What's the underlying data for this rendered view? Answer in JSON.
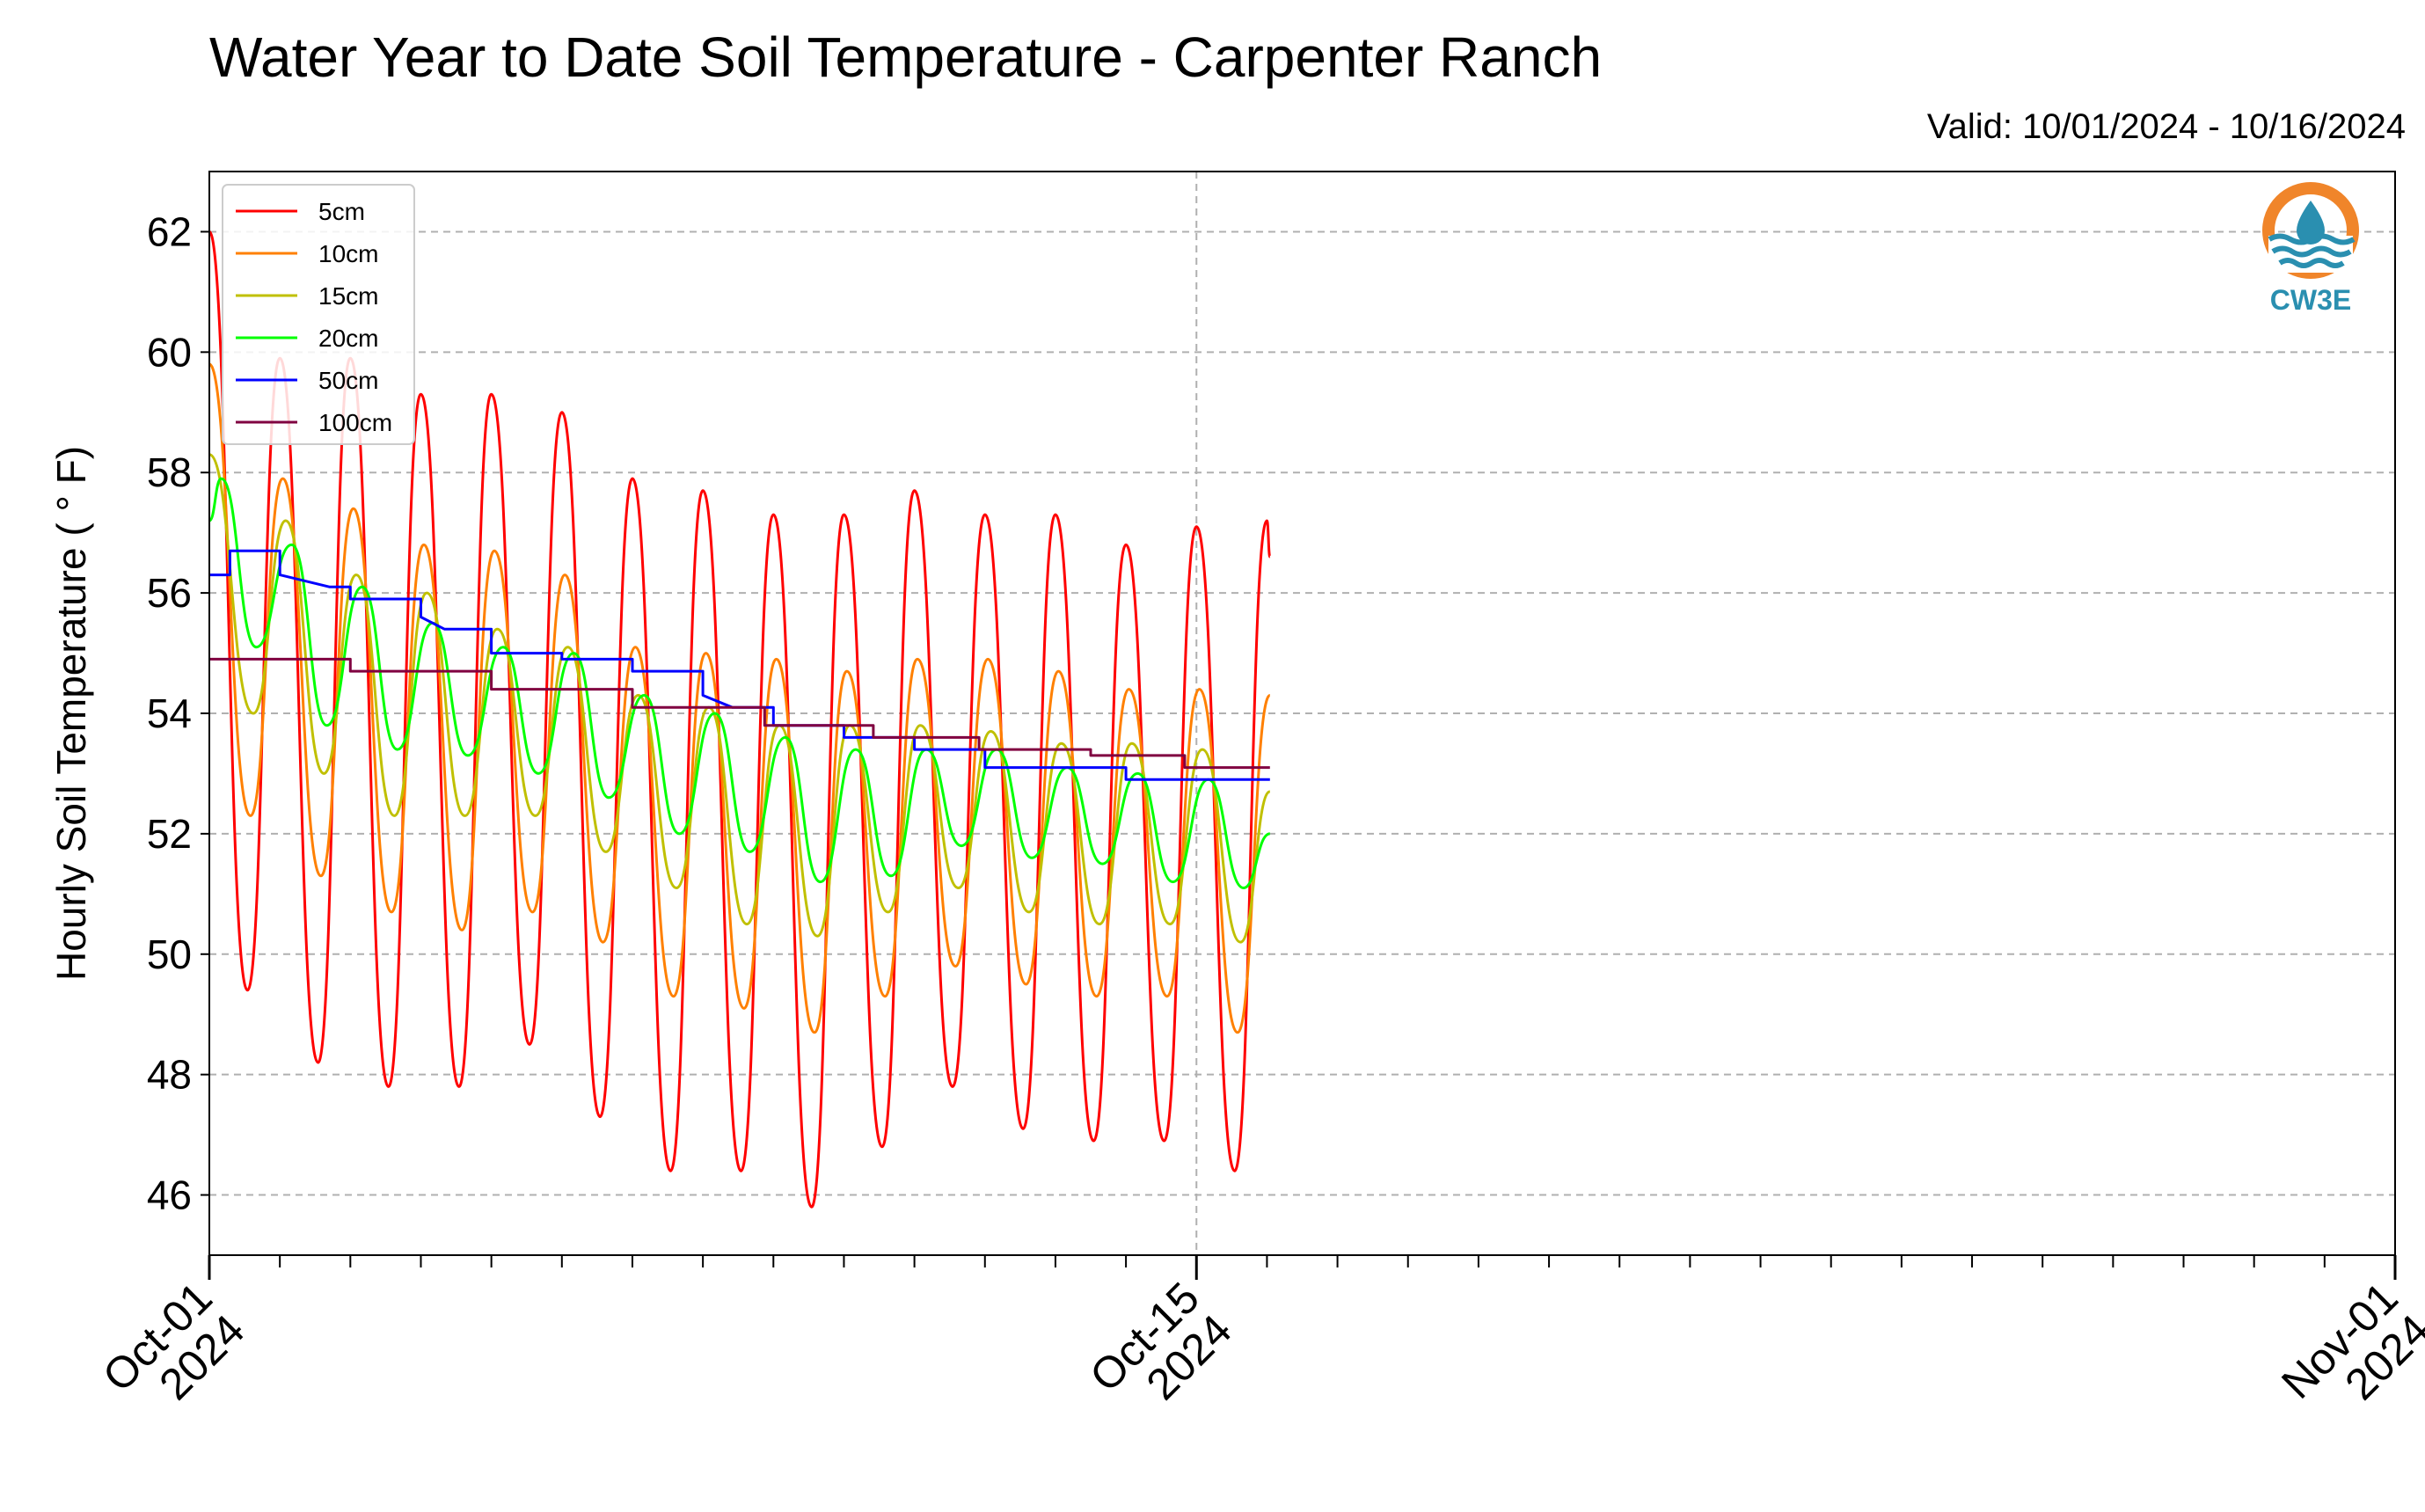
{
  "title": "Water Year to Date Soil Temperature - Carpenter Ranch",
  "valid": "Valid: 10/01/2024 - 10/16/2024",
  "logo": {
    "text": "CW3E",
    "colors": {
      "ring": "#f0852a",
      "water": "#2a8fb0"
    }
  },
  "chart_data": {
    "type": "line",
    "ylabel": "Hourly Soil Temperature ( ° F)",
    "xlabel": "",
    "ylim": [
      45,
      63
    ],
    "yticks": [
      46,
      48,
      50,
      52,
      54,
      56,
      58,
      60,
      62
    ],
    "xlim": [
      "2024-10-01",
      "2024-11-01"
    ],
    "xticks": [
      {
        "date": "2024-10-01",
        "label1": "Oct-01",
        "label2": "2024"
      },
      {
        "date": "2024-10-15",
        "label1": "Oct-15",
        "label2": "2024"
      },
      {
        "date": "2024-11-01",
        "label1": "Nov-01",
        "label2": "2024"
      }
    ],
    "vline": "2024-10-15",
    "grid": true,
    "legend": "top-left",
    "series": [
      {
        "name": "5cm",
        "color": "#ff0000",
        "points": [
          [
            "2024-10-01 00:00",
            62.0
          ],
          [
            "2024-10-01 13:00",
            49.4
          ],
          [
            "2024-10-02 00:00",
            59.9
          ],
          [
            "2024-10-02 13:00",
            48.2
          ],
          [
            "2024-10-03 00:00",
            59.9
          ],
          [
            "2024-10-03 13:00",
            47.8
          ],
          [
            "2024-10-04 00:00",
            59.3
          ],
          [
            "2024-10-04 13:00",
            47.8
          ],
          [
            "2024-10-05 00:00",
            59.3
          ],
          [
            "2024-10-05 13:00",
            48.5
          ],
          [
            "2024-10-06 00:00",
            59.0
          ],
          [
            "2024-10-06 13:00",
            47.3
          ],
          [
            "2024-10-07 00:00",
            57.9
          ],
          [
            "2024-10-07 13:00",
            46.4
          ],
          [
            "2024-10-08 00:00",
            57.7
          ],
          [
            "2024-10-08 13:00",
            46.4
          ],
          [
            "2024-10-09 00:00",
            57.3
          ],
          [
            "2024-10-09 13:00",
            45.8
          ],
          [
            "2024-10-10 00:00",
            57.3
          ],
          [
            "2024-10-10 13:00",
            46.8
          ],
          [
            "2024-10-11 00:00",
            57.7
          ],
          [
            "2024-10-11 13:00",
            47.8
          ],
          [
            "2024-10-12 00:00",
            57.3
          ],
          [
            "2024-10-12 13:00",
            47.1
          ],
          [
            "2024-10-13 00:00",
            57.3
          ],
          [
            "2024-10-13 13:00",
            46.9
          ],
          [
            "2024-10-14 00:00",
            56.8
          ],
          [
            "2024-10-14 13:00",
            46.9
          ],
          [
            "2024-10-15 00:00",
            57.1
          ],
          [
            "2024-10-15 13:00",
            46.4
          ],
          [
            "2024-10-16 00:00",
            57.2
          ],
          [
            "2024-10-16 01:00",
            56.6
          ]
        ]
      },
      {
        "name": "10cm",
        "color": "#ff8000",
        "points": [
          [
            "2024-10-01 00:00",
            59.8
          ],
          [
            "2024-10-01 14:00",
            52.3
          ],
          [
            "2024-10-02 01:00",
            57.9
          ],
          [
            "2024-10-02 14:00",
            51.3
          ],
          [
            "2024-10-03 01:00",
            57.4
          ],
          [
            "2024-10-03 14:00",
            50.7
          ],
          [
            "2024-10-04 01:00",
            56.8
          ],
          [
            "2024-10-04 14:00",
            50.4
          ],
          [
            "2024-10-05 01:00",
            56.7
          ],
          [
            "2024-10-05 14:00",
            50.7
          ],
          [
            "2024-10-06 01:00",
            56.3
          ],
          [
            "2024-10-06 14:00",
            50.2
          ],
          [
            "2024-10-07 01:00",
            55.1
          ],
          [
            "2024-10-07 14:00",
            49.3
          ],
          [
            "2024-10-08 01:00",
            55.0
          ],
          [
            "2024-10-08 14:00",
            49.1
          ],
          [
            "2024-10-09 01:00",
            54.9
          ],
          [
            "2024-10-09 14:00",
            48.7
          ],
          [
            "2024-10-10 01:00",
            54.7
          ],
          [
            "2024-10-10 14:00",
            49.3
          ],
          [
            "2024-10-11 01:00",
            54.9
          ],
          [
            "2024-10-11 14:00",
            49.8
          ],
          [
            "2024-10-12 01:00",
            54.9
          ],
          [
            "2024-10-12 14:00",
            49.5
          ],
          [
            "2024-10-13 01:00",
            54.7
          ],
          [
            "2024-10-13 14:00",
            49.3
          ],
          [
            "2024-10-14 01:00",
            54.4
          ],
          [
            "2024-10-14 14:00",
            49.3
          ],
          [
            "2024-10-15 01:00",
            54.4
          ],
          [
            "2024-10-15 14:00",
            48.7
          ],
          [
            "2024-10-16 01:00",
            54.3
          ]
        ]
      },
      {
        "name": "15cm",
        "color": "#c0c000",
        "points": [
          [
            "2024-10-01 00:00",
            58.3
          ],
          [
            "2024-10-01 15:00",
            54.0
          ],
          [
            "2024-10-02 02:00",
            57.2
          ],
          [
            "2024-10-02 15:00",
            53.0
          ],
          [
            "2024-10-03 02:00",
            56.3
          ],
          [
            "2024-10-03 15:00",
            52.3
          ],
          [
            "2024-10-04 02:00",
            56.0
          ],
          [
            "2024-10-04 15:00",
            52.3
          ],
          [
            "2024-10-05 02:00",
            55.4
          ],
          [
            "2024-10-05 15:00",
            52.3
          ],
          [
            "2024-10-06 02:00",
            55.1
          ],
          [
            "2024-10-06 15:00",
            51.7
          ],
          [
            "2024-10-07 02:00",
            54.3
          ],
          [
            "2024-10-07 15:00",
            51.1
          ],
          [
            "2024-10-08 02:00",
            54.1
          ],
          [
            "2024-10-08 15:00",
            50.5
          ],
          [
            "2024-10-09 02:00",
            53.8
          ],
          [
            "2024-10-09 15:00",
            50.3
          ],
          [
            "2024-10-10 02:00",
            53.8
          ],
          [
            "2024-10-10 15:00",
            50.7
          ],
          [
            "2024-10-11 02:00",
            53.8
          ],
          [
            "2024-10-11 15:00",
            51.1
          ],
          [
            "2024-10-12 02:00",
            53.7
          ],
          [
            "2024-10-12 15:00",
            50.7
          ],
          [
            "2024-10-13 02:00",
            53.5
          ],
          [
            "2024-10-13 15:00",
            50.5
          ],
          [
            "2024-10-14 02:00",
            53.5
          ],
          [
            "2024-10-14 15:00",
            50.5
          ],
          [
            "2024-10-15 02:00",
            53.4
          ],
          [
            "2024-10-15 15:00",
            50.2
          ],
          [
            "2024-10-16 01:00",
            52.7
          ]
        ]
      },
      {
        "name": "20cm",
        "color": "#00ff00",
        "points": [
          [
            "2024-10-01 00:00",
            57.2
          ],
          [
            "2024-10-01 04:00",
            57.9
          ],
          [
            "2024-10-01 16:00",
            55.1
          ],
          [
            "2024-10-02 04:00",
            56.8
          ],
          [
            "2024-10-02 16:00",
            53.8
          ],
          [
            "2024-10-03 04:00",
            56.1
          ],
          [
            "2024-10-03 16:00",
            53.4
          ],
          [
            "2024-10-04 04:00",
            55.5
          ],
          [
            "2024-10-04 16:00",
            53.3
          ],
          [
            "2024-10-05 04:00",
            55.1
          ],
          [
            "2024-10-05 16:00",
            53.0
          ],
          [
            "2024-10-06 04:00",
            55.0
          ],
          [
            "2024-10-06 16:00",
            52.6
          ],
          [
            "2024-10-07 04:00",
            54.3
          ],
          [
            "2024-10-07 16:00",
            52.0
          ],
          [
            "2024-10-08 04:00",
            54.0
          ],
          [
            "2024-10-08 16:00",
            51.7
          ],
          [
            "2024-10-09 04:00",
            53.6
          ],
          [
            "2024-10-09 16:00",
            51.2
          ],
          [
            "2024-10-10 04:00",
            53.4
          ],
          [
            "2024-10-10 16:00",
            51.3
          ],
          [
            "2024-10-11 04:00",
            53.4
          ],
          [
            "2024-10-11 16:00",
            51.8
          ],
          [
            "2024-10-12 04:00",
            53.4
          ],
          [
            "2024-10-12 16:00",
            51.6
          ],
          [
            "2024-10-13 04:00",
            53.1
          ],
          [
            "2024-10-13 16:00",
            51.5
          ],
          [
            "2024-10-14 04:00",
            53.0
          ],
          [
            "2024-10-14 16:00",
            51.2
          ],
          [
            "2024-10-15 04:00",
            52.9
          ],
          [
            "2024-10-15 16:00",
            51.1
          ],
          [
            "2024-10-16 01:00",
            52.0
          ]
        ]
      },
      {
        "name": "50cm",
        "color": "#0000ff",
        "points": [
          [
            "2024-10-01 00:00",
            56.3
          ],
          [
            "2024-10-01 07:00",
            56.3
          ],
          [
            "2024-10-01 07:00",
            56.7
          ],
          [
            "2024-10-02 00:00",
            56.7
          ],
          [
            "2024-10-02 00:00",
            56.3
          ],
          [
            "2024-10-02 17:00",
            56.1
          ],
          [
            "2024-10-03 00:00",
            56.1
          ],
          [
            "2024-10-03 00:00",
            55.9
          ],
          [
            "2024-10-04 00:00",
            55.9
          ],
          [
            "2024-10-04 00:00",
            55.6
          ],
          [
            "2024-10-04 08:00",
            55.4
          ],
          [
            "2024-10-05 00:00",
            55.4
          ],
          [
            "2024-10-05 00:00",
            55.0
          ],
          [
            "2024-10-06 00:00",
            55.0
          ],
          [
            "2024-10-06 00:00",
            54.9
          ],
          [
            "2024-10-07 00:00",
            54.9
          ],
          [
            "2024-10-07 00:00",
            54.7
          ],
          [
            "2024-10-08 00:00",
            54.7
          ],
          [
            "2024-10-08 00:00",
            54.3
          ],
          [
            "2024-10-08 10:00",
            54.1
          ],
          [
            "2024-10-09 00:00",
            54.1
          ],
          [
            "2024-10-09 00:00",
            53.8
          ],
          [
            "2024-10-10 00:00",
            53.8
          ],
          [
            "2024-10-10 00:00",
            53.6
          ],
          [
            "2024-10-11 00:00",
            53.6
          ],
          [
            "2024-10-11 00:00",
            53.4
          ],
          [
            "2024-10-12 00:00",
            53.4
          ],
          [
            "2024-10-12 00:00",
            53.1
          ],
          [
            "2024-10-13 00:00",
            53.1
          ],
          [
            "2024-10-14 00:00",
            53.1
          ],
          [
            "2024-10-14 00:00",
            52.9
          ],
          [
            "2024-10-15 00:00",
            52.9
          ],
          [
            "2024-10-16 01:00",
            52.9
          ]
        ]
      },
      {
        "name": "100cm",
        "color": "#800040",
        "points": [
          [
            "2024-10-01 00:00",
            54.9
          ],
          [
            "2024-10-03 00:00",
            54.9
          ],
          [
            "2024-10-03 00:00",
            54.7
          ],
          [
            "2024-10-05 00:00",
            54.7
          ],
          [
            "2024-10-05 00:00",
            54.4
          ],
          [
            "2024-10-07 00:00",
            54.4
          ],
          [
            "2024-10-07 00:00",
            54.1
          ],
          [
            "2024-10-08 21:00",
            54.1
          ],
          [
            "2024-10-08 21:00",
            53.8
          ],
          [
            "2024-10-10 10:00",
            53.8
          ],
          [
            "2024-10-10 10:00",
            53.6
          ],
          [
            "2024-10-11 22:00",
            53.6
          ],
          [
            "2024-10-11 22:00",
            53.4
          ],
          [
            "2024-10-13 12:00",
            53.4
          ],
          [
            "2024-10-13 12:00",
            53.3
          ],
          [
            "2024-10-14 20:00",
            53.3
          ],
          [
            "2024-10-14 20:00",
            53.1
          ],
          [
            "2024-10-16 01:00",
            53.1
          ]
        ]
      }
    ]
  }
}
